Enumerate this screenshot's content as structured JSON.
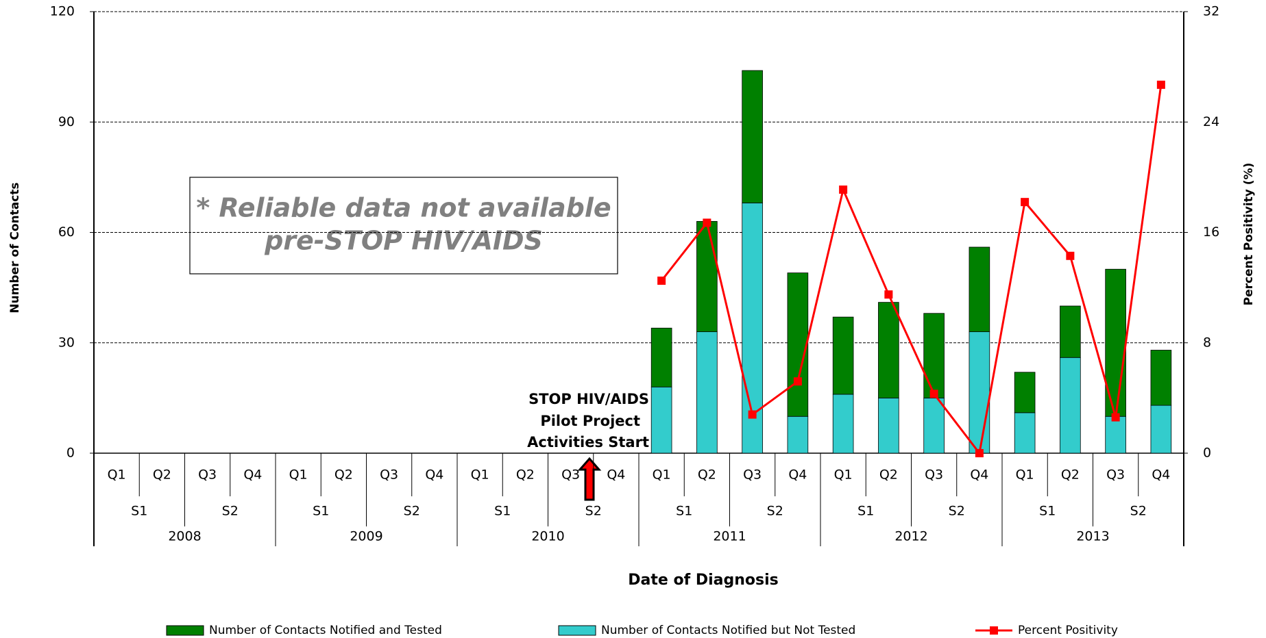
{
  "chart_data": {
    "type": "bar",
    "x_title": "Date of Diagnosis",
    "y_title": "Number of Contacts",
    "y2_title": "Percent Positivity (%)",
    "categories": [
      "Q1",
      "Q2",
      "Q3",
      "Q4",
      "Q1",
      "Q2",
      "Q3",
      "Q4",
      "Q1",
      "Q2",
      "Q3",
      "Q4",
      "Q1",
      "Q2",
      "Q3",
      "Q4",
      "Q1",
      "Q2",
      "Q3",
      "Q4",
      "Q1",
      "Q2",
      "Q3",
      "Q4"
    ],
    "semesters": [
      "S1",
      "S2",
      "S1",
      "S2",
      "S1",
      "S2",
      "S1",
      "S2",
      "S1",
      "S2",
      "S1",
      "S2"
    ],
    "years": [
      "2008",
      "2009",
      "2010",
      "2011",
      "2012",
      "2013"
    ],
    "series": [
      {
        "name": "Number of Contacts Notified and Tested",
        "color": "#008000",
        "values": [
          null,
          null,
          null,
          null,
          null,
          null,
          null,
          null,
          null,
          null,
          null,
          null,
          16,
          30,
          36,
          39,
          21,
          26,
          23,
          23,
          11,
          14,
          40,
          15
        ]
      },
      {
        "name": "Number of Contacts Notified but Not Tested",
        "color": "#33cccc",
        "values": [
          null,
          null,
          null,
          null,
          null,
          null,
          null,
          null,
          null,
          null,
          null,
          null,
          18,
          33,
          68,
          10,
          16,
          15,
          15,
          33,
          11,
          26,
          10,
          13
        ]
      },
      {
        "name": "Percent Positivity",
        "color": "#ff0000",
        "type": "line",
        "axis": "y2",
        "values": [
          null,
          null,
          null,
          null,
          null,
          null,
          null,
          null,
          null,
          null,
          null,
          null,
          12.5,
          16.7,
          2.8,
          5.2,
          19.1,
          11.5,
          4.3,
          0,
          18.2,
          14.3,
          2.6,
          26.7
        ]
      }
    ],
    "ylim": [
      0,
      120
    ],
    "yticks": [
      0,
      30,
      60,
      90,
      120
    ],
    "y2lim": [
      0,
      32
    ],
    "y2ticks": [
      0,
      8,
      16,
      24,
      32
    ],
    "grid": true,
    "legend": "bottom",
    "note": [
      "* Reliable data not available",
      "pre-STOP HIV/AIDS"
    ],
    "annotation": [
      "STOP HIV/AIDS",
      "Pilot Project",
      "Activities Start"
    ]
  }
}
